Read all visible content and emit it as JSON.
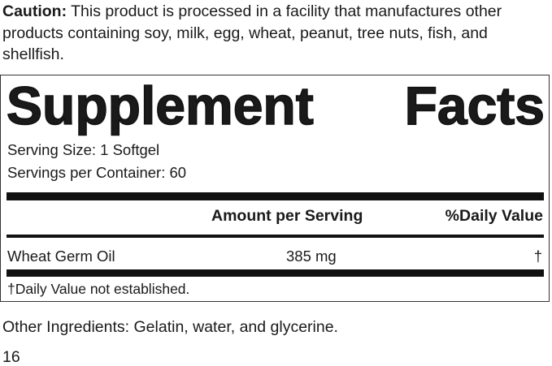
{
  "caution": {
    "label": "Caution:",
    "text": " This product is processed in a facility that manufactures other products containing soy, milk, egg, wheat, peanut, tree nuts, fish, and shellfish."
  },
  "facts": {
    "title_word1": "Supplement",
    "title_word2": "Facts",
    "serving_size": "Serving Size: 1 Softgel",
    "servings_per_container": "Servings per Container: 60",
    "col_amount": "Amount per Serving",
    "col_dv": "%Daily Value",
    "rows": [
      {
        "name": "Wheat Germ Oil",
        "amount": "385 mg",
        "dv": "†"
      }
    ],
    "footnote": "†Daily Value not established."
  },
  "other_ingredients": "Other Ingredients: Gelatin, water, and glycerine.",
  "page_number": "16"
}
